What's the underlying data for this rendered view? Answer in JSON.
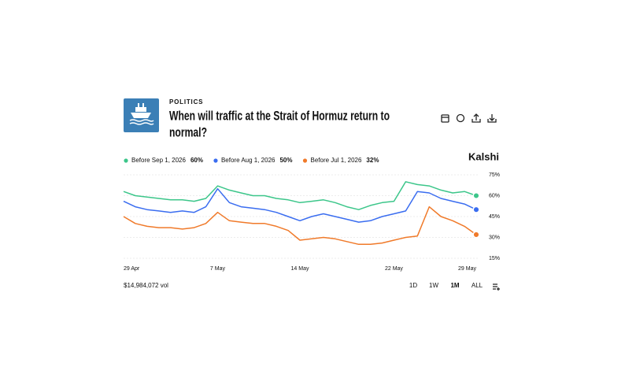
{
  "page": {
    "category": "POLITICS",
    "title_lines": [
      "When will traffic at the Strait of Hormuz return to",
      "normal?"
    ],
    "brand": "Kalshi",
    "volume": "$14,984,072 vol",
    "ranges": [
      "1D",
      "1W",
      "1M",
      "ALL"
    ],
    "active_range": "1M"
  },
  "chart_data": {
    "type": "line",
    "categories": [
      "29 Apr",
      null,
      null,
      null,
      null,
      null,
      null,
      null,
      "7 May",
      null,
      null,
      null,
      null,
      null,
      null,
      "14 May",
      null,
      null,
      null,
      null,
      null,
      null,
      null,
      "22 May",
      null,
      null,
      null,
      null,
      null,
      null,
      "29 May"
    ],
    "series": [
      {
        "name": "Before Sep 1, 2026",
        "color": "#3cc68a",
        "values": [
          63,
          60,
          59,
          58,
          57,
          57,
          56,
          58,
          67,
          64,
          62,
          60,
          60,
          58,
          57,
          55,
          56,
          57,
          55,
          52,
          50,
          53,
          55,
          56,
          70,
          68,
          67,
          64,
          62,
          63,
          60
        ],
        "value_labels": [
          null,
          null,
          null,
          null,
          null,
          null,
          null,
          null,
          null,
          null,
          null,
          null,
          null,
          null,
          null,
          null,
          null,
          null,
          null,
          null,
          null,
          null,
          null,
          null,
          null,
          null,
          null,
          null,
          null,
          null,
          "60%"
        ]
      },
      {
        "name": "Before Aug 1, 2026",
        "color": "#3a6df0",
        "values": [
          56,
          52,
          50,
          49,
          48,
          49,
          48,
          52,
          65,
          55,
          52,
          51,
          50,
          48,
          45,
          42,
          45,
          47,
          45,
          43,
          41,
          42,
          45,
          47,
          49,
          63,
          62,
          58,
          56,
          54,
          50
        ],
        "value_labels": [
          null,
          null,
          null,
          null,
          null,
          null,
          null,
          null,
          null,
          null,
          null,
          null,
          null,
          null,
          null,
          null,
          null,
          null,
          null,
          null,
          null,
          null,
          null,
          null,
          null,
          null,
          null,
          null,
          null,
          null,
          "50%"
        ]
      },
      {
        "name": "Before Jul 1, 2026",
        "color": "#f07a2a",
        "values": [
          45,
          40,
          38,
          37,
          37,
          36,
          37,
          40,
          48,
          42,
          41,
          40,
          40,
          38,
          35,
          28,
          29,
          30,
          29,
          27,
          25,
          25,
          26,
          28,
          30,
          31,
          52,
          45,
          42,
          38,
          32
        ],
        "value_labels": [
          null,
          null,
          null,
          null,
          null,
          null,
          null,
          null,
          null,
          null,
          null,
          null,
          null,
          null,
          null,
          null,
          null,
          null,
          null,
          null,
          null,
          null,
          null,
          null,
          null,
          null,
          null,
          null,
          null,
          null,
          "32%"
        ]
      }
    ],
    "ylim": [
      15,
      75
    ],
    "yticks": [
      {
        "value": 75,
        "label": "75%"
      },
      {
        "value": 60,
        "label": "60%"
      },
      {
        "value": 45,
        "label": "45%"
      },
      {
        "value": 30,
        "label": "30%"
      },
      {
        "value": 15,
        "label": "15%"
      }
    ],
    "grid": true
  }
}
